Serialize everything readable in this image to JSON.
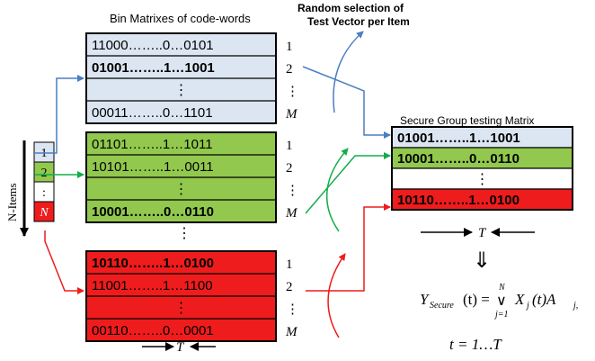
{
  "headers": {
    "bin_matrixes": "Bin Matrixes of code-words",
    "random_selection_line1": "Random selection of",
    "random_selection_line2": "Test Vector per Item",
    "secure_group": "Secure Group testing Matrix"
  },
  "items_label": "N-Items",
  "item_list": [
    "1",
    "2",
    ":",
    "N"
  ],
  "matrices": [
    {
      "color": "#dce6f2",
      "rows": [
        {
          "text": "11000……..0…0101",
          "label": "1",
          "bold": false
        },
        {
          "text": "01001……..1…1001",
          "label": "2",
          "bold": true
        },
        {
          "text": "⋮",
          "label": "⋮",
          "bold": false
        },
        {
          "text": "00011……..0…1101",
          "label": "M",
          "bold": false
        }
      ]
    },
    {
      "color": "#92c84e",
      "rows": [
        {
          "text": "01101……..1…1011",
          "label": "1",
          "bold": false
        },
        {
          "text": "10101……..1…0011",
          "label": "2",
          "bold": false
        },
        {
          "text": "⋮",
          "label": "⋮",
          "bold": false
        },
        {
          "text": "10001……..0…0110",
          "label": "M",
          "bold": true
        }
      ]
    },
    {
      "color": "#ee1c1c",
      "rows": [
        {
          "text": "10110……..1…0100",
          "label": "1",
          "bold": true
        },
        {
          "text": "11001……..1…1100",
          "label": "2",
          "bold": false
        },
        {
          "text": "⋮",
          "label": "⋮",
          "bold": false
        },
        {
          "text": "00110……..0…0001",
          "label": "M",
          "bold": false
        }
      ]
    }
  ],
  "between_dots": "⋮",
  "secure_matrix": {
    "rows": [
      {
        "text": "01001……..1…1001",
        "color": "#dce6f2"
      },
      {
        "text": "10001……..0…0110",
        "color": "#92c84e"
      },
      {
        "text": "⋮",
        "color": "#ffffff"
      },
      {
        "text": "10110……..1…0100",
        "color": "#ee1c1c"
      }
    ]
  },
  "t_label": "T",
  "implies": "⇓",
  "formula": {
    "lhs": "Y",
    "lhs_sub": "Secure",
    "mid": "(t) =",
    "op_top": "N",
    "op": "∨",
    "op_bottom": "j=1",
    "x": "X",
    "x_sub": "j",
    "t_paren": "(t)A",
    "a_sub": "j,",
    "range": "t = 1…T"
  },
  "colors": {
    "blue_arrow": "#4a7ec2",
    "green_arrow": "#13ad4b",
    "red_arrow": "#ee1c1c",
    "border": "#000000"
  }
}
